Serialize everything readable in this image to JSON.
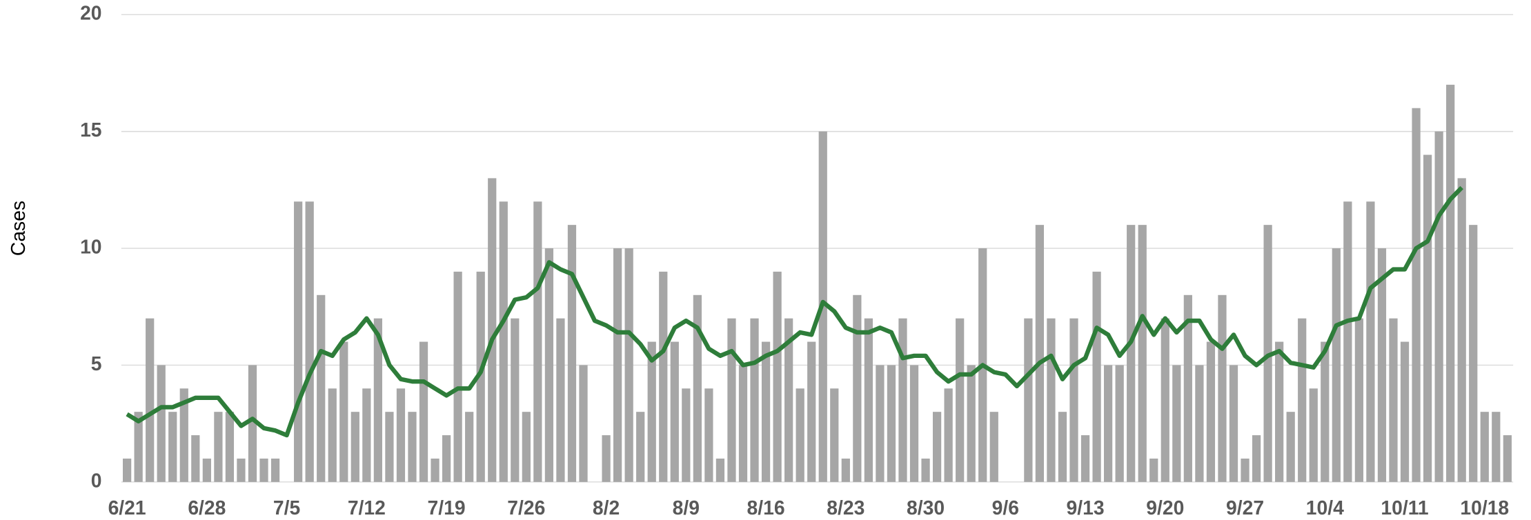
{
  "chart_data": {
    "type": "bar",
    "y_label": "Cases",
    "categories": [
      "6/21",
      null,
      null,
      null,
      null,
      null,
      null,
      "6/28",
      null,
      null,
      null,
      null,
      null,
      null,
      "7/5",
      null,
      null,
      null,
      null,
      null,
      null,
      "7/12",
      null,
      null,
      null,
      null,
      null,
      null,
      "7/19",
      null,
      null,
      null,
      null,
      null,
      null,
      "7/26",
      null,
      null,
      null,
      null,
      null,
      null,
      "8/2",
      null,
      null,
      null,
      null,
      null,
      null,
      "8/9",
      null,
      null,
      null,
      null,
      null,
      null,
      "8/16",
      null,
      null,
      null,
      null,
      null,
      null,
      "8/23",
      null,
      null,
      null,
      null,
      null,
      null,
      "8/30",
      null,
      null,
      null,
      null,
      null,
      null,
      "9/6",
      null,
      null,
      null,
      null,
      null,
      null,
      "9/13",
      null,
      null,
      null,
      null,
      null,
      null,
      "9/20",
      null,
      null,
      null,
      null,
      null,
      null,
      "9/27",
      null,
      null,
      null,
      null,
      null,
      null,
      "10/4",
      null,
      null,
      null,
      null,
      null,
      null,
      "10/11",
      null,
      null,
      null,
      null,
      null,
      null,
      "10/18",
      null,
      null
    ],
    "series": [
      {
        "type": "bar",
        "color": "#a6a6a6",
        "values": [
          1,
          3,
          7,
          5,
          3,
          4,
          2,
          1,
          3,
          3,
          1,
          5,
          1,
          1,
          0,
          12,
          12,
          8,
          4,
          6,
          3,
          4,
          7,
          3,
          4,
          3,
          6,
          1,
          2,
          9,
          3,
          9,
          13,
          12,
          7,
          3,
          12,
          10,
          7,
          11,
          5,
          0,
          2,
          10,
          10,
          3,
          6,
          9,
          6,
          4,
          8,
          4,
          1,
          7,
          5,
          7,
          6,
          9,
          7,
          4,
          6,
          15,
          4,
          1,
          8,
          7,
          5,
          5,
          7,
          5,
          1,
          3,
          4,
          7,
          5,
          10,
          3,
          0,
          0,
          7,
          11,
          7,
          3,
          7,
          2,
          9,
          5,
          5,
          11,
          11,
          1,
          7,
          5,
          8,
          5,
          6,
          8,
          5,
          1,
          2,
          11,
          6,
          3,
          7,
          4,
          6,
          10,
          12,
          7,
          12,
          10,
          7,
          6,
          16,
          14,
          15,
          17,
          13,
          11,
          3,
          3,
          2
        ]
      },
      {
        "type": "line",
        "color": "#2e7d3a",
        "values": [
          2.9,
          2.6,
          2.9,
          3.2,
          3.2,
          3.4,
          3.6,
          3.6,
          3.6,
          3.0,
          2.4,
          2.7,
          2.3,
          2.2,
          2.0,
          3.4,
          4.6,
          5.6,
          5.4,
          6.1,
          6.4,
          7.0,
          6.3,
          5.0,
          4.4,
          4.3,
          4.3,
          4.0,
          3.7,
          4.0,
          4.0,
          4.7,
          6.1,
          6.9,
          7.8,
          7.9,
          8.3,
          9.4,
          9.1,
          8.9,
          7.9,
          6.9,
          6.7,
          6.4,
          6.4,
          5.9,
          5.2,
          5.6,
          6.6,
          6.9,
          6.6,
          5.7,
          5.4,
          5.6,
          5.0,
          5.1,
          5.4,
          5.6,
          6.0,
          6.4,
          6.3,
          7.7,
          7.3,
          6.6,
          6.4,
          6.4,
          6.6,
          6.4,
          5.3,
          5.4,
          5.4,
          4.7,
          4.3,
          4.6,
          4.6,
          5.0,
          4.7,
          4.6,
          4.1,
          4.6,
          5.1,
          5.4,
          4.4,
          5.0,
          5.3,
          6.6,
          6.3,
          5.4,
          6.0,
          7.1,
          6.3,
          7.0,
          6.4,
          6.9,
          6.9,
          6.1,
          5.7,
          6.3,
          5.4,
          5.0,
          5.4,
          5.6,
          5.1,
          5.0,
          4.9,
          5.6,
          6.7,
          6.9,
          7.0,
          8.3,
          8.7,
          9.1,
          9.1,
          10.0,
          10.3,
          11.4,
          12.1,
          12.6,
          null,
          null,
          null,
          null
        ]
      }
    ],
    "ylim": [
      0,
      20
    ],
    "yticks": [
      0,
      5,
      10,
      15,
      20
    ],
    "grid": true
  }
}
